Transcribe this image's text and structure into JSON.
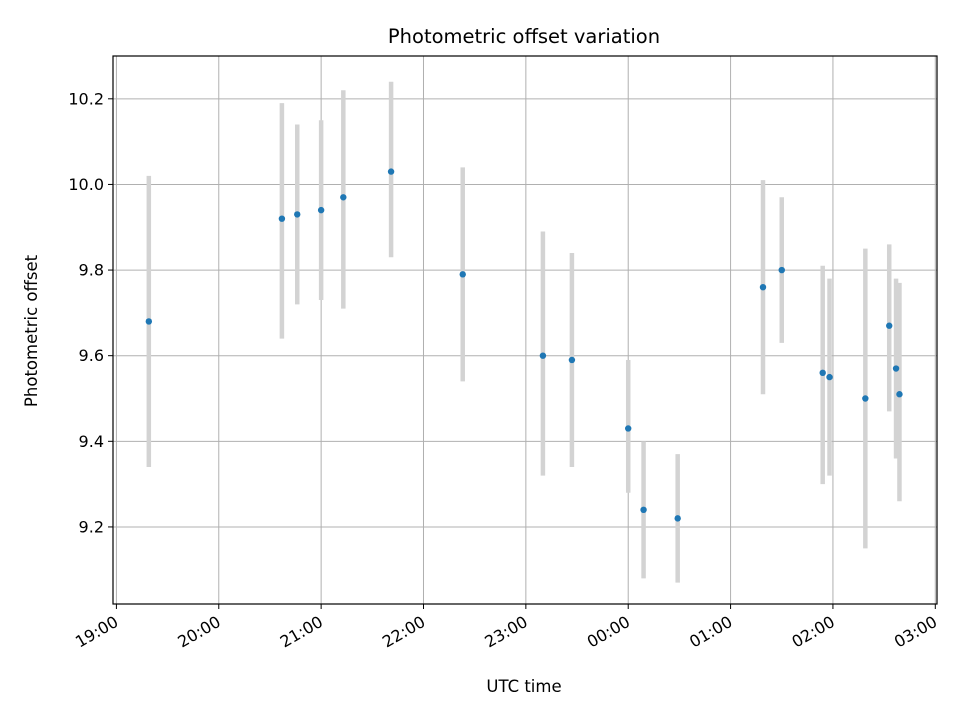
{
  "chart_data": {
    "type": "scatter",
    "title": "Photometric offset variation",
    "xlabel": "UTC time",
    "ylabel": "Photometric offset",
    "x_ticks": [
      "19:00",
      "20:00",
      "21:00",
      "22:00",
      "23:00",
      "00:00",
      "01:00",
      "02:00",
      "03:00"
    ],
    "y_ticks": [
      "9.2",
      "9.4",
      "9.6",
      "9.8",
      "10.0",
      "10.2"
    ],
    "xlim": [
      "18:58",
      "27:01"
    ],
    "ylim": [
      9.02,
      10.3
    ],
    "grid": true,
    "colors": {
      "point": "#1f77b4",
      "errorbar": "#d3d3d3",
      "grid": "#b0b0b0"
    },
    "points": [
      {
        "t": "19:19",
        "y": 9.68,
        "lo": 9.34,
        "hi": 10.02
      },
      {
        "t": "20:37",
        "y": 9.92,
        "lo": 9.64,
        "hi": 10.19
      },
      {
        "t": "20:46",
        "y": 9.93,
        "lo": 9.72,
        "hi": 10.14
      },
      {
        "t": "21:00",
        "y": 9.94,
        "lo": 9.73,
        "hi": 10.15
      },
      {
        "t": "21:13",
        "y": 9.97,
        "lo": 9.71,
        "hi": 10.22
      },
      {
        "t": "21:41",
        "y": 10.03,
        "lo": 9.83,
        "hi": 10.24
      },
      {
        "t": "22:23",
        "y": 9.79,
        "lo": 9.54,
        "hi": 10.04
      },
      {
        "t": "23:10",
        "y": 9.6,
        "lo": 9.32,
        "hi": 9.89
      },
      {
        "t": "23:27",
        "y": 9.59,
        "lo": 9.34,
        "hi": 9.84
      },
      {
        "t": "24:00",
        "y": 9.43,
        "lo": 9.28,
        "hi": 9.59
      },
      {
        "t": "24:09",
        "y": 9.24,
        "lo": 9.08,
        "hi": 9.4
      },
      {
        "t": "24:29",
        "y": 9.22,
        "lo": 9.07,
        "hi": 9.37
      },
      {
        "t": "25:19",
        "y": 9.76,
        "lo": 9.51,
        "hi": 10.01
      },
      {
        "t": "25:30",
        "y": 9.8,
        "lo": 9.63,
        "hi": 9.97
      },
      {
        "t": "25:54",
        "y": 9.56,
        "lo": 9.3,
        "hi": 9.81
      },
      {
        "t": "25:58",
        "y": 9.55,
        "lo": 9.32,
        "hi": 9.78
      },
      {
        "t": "26:19",
        "y": 9.5,
        "lo": 9.15,
        "hi": 9.85
      },
      {
        "t": "26:33",
        "y": 9.67,
        "lo": 9.47,
        "hi": 9.86
      },
      {
        "t": "26:37",
        "y": 9.57,
        "lo": 9.36,
        "hi": 9.78
      },
      {
        "t": "26:39",
        "y": 9.51,
        "lo": 9.26,
        "hi": 9.77
      }
    ]
  }
}
